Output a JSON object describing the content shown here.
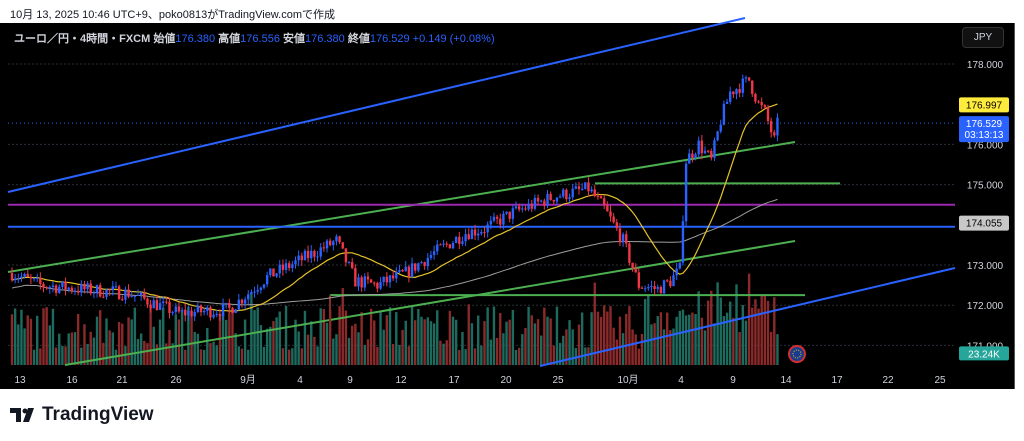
{
  "caption": "10月 13, 2025 10:46 UTC+9、poko0813がTradingView.comで作成",
  "legend": {
    "symbol": "ユーロ／円・4時間・FXCM",
    "open_label": "始値",
    "open": "176.380",
    "high_label": "高値",
    "high": "176.556",
    "low_label": "安値",
    "low": "176.380",
    "close_label": "終値",
    "close": "176.529",
    "change": "+0.149 (+0.08%)"
  },
  "currency_button": "JPY",
  "logo": "TradingView",
  "chart_data": {
    "type": "candlestick",
    "title": "ユーロ／円・4時間・FXCM",
    "y_ticks": [
      "178.000",
      "176.000",
      "175.000",
      "173.000",
      "172.000",
      "171.000"
    ],
    "y_tick_values": [
      178,
      176,
      175,
      173,
      172,
      171
    ],
    "ylim": [
      170.5,
      179
    ],
    "x_ticks": [
      "13",
      "16",
      "21",
      "26",
      "9月",
      "4",
      "9",
      "12",
      "17",
      "20",
      "25",
      "10月",
      "4",
      "9",
      "14",
      "17",
      "22",
      "25"
    ],
    "price_labels": {
      "ma_value": "176.997",
      "last_price": "176.529",
      "countdown": "03:13:13",
      "level": "174.055",
      "volume": "23.24K"
    },
    "price_path": [
      [
        0,
        172.8
      ],
      [
        9,
        172.5
      ],
      [
        22,
        172.4
      ],
      [
        37,
        172.3
      ],
      [
        53,
        171.8
      ],
      [
        69,
        171.9
      ],
      [
        81,
        172.7
      ],
      [
        91,
        173.1
      ],
      [
        103,
        173.6
      ],
      [
        109,
        172.6
      ],
      [
        116,
        172.5
      ],
      [
        125,
        172.8
      ],
      [
        134,
        173.3
      ],
      [
        144,
        173.8
      ],
      [
        150,
        173.9
      ],
      [
        159,
        174.3
      ],
      [
        172,
        174.7
      ],
      [
        183,
        174.9
      ],
      [
        188,
        174.4
      ],
      [
        194,
        173.6
      ],
      [
        199,
        172.5
      ],
      [
        205,
        172.4
      ],
      [
        209,
        172.6
      ],
      [
        212,
        172.9
      ],
      [
        214,
        175.6
      ],
      [
        218,
        176.0
      ],
      [
        222,
        175.6
      ],
      [
        225,
        176.6
      ],
      [
        228,
        177.3
      ],
      [
        234,
        177.6
      ],
      [
        237,
        177.0
      ],
      [
        239,
        176.8
      ],
      [
        242,
        176.1
      ],
      [
        243,
        176.5
      ]
    ],
    "horizontal_levels": [
      {
        "price": 175.03,
        "color": "#4caf50"
      },
      {
        "price": 174.5,
        "color": "#9c27b0"
      },
      {
        "price": 173.95,
        "color": "#2962ff"
      },
      {
        "price": 172.25,
        "color": "#4caf50"
      }
    ],
    "colors": {
      "up": "#2962ff",
      "down": "#f23645",
      "vol_up": "#1d6b5f",
      "vol_down": "#8a2a2a",
      "ma_fast": "#e6c229",
      "ma_slow": "#9e9e9e"
    }
  }
}
